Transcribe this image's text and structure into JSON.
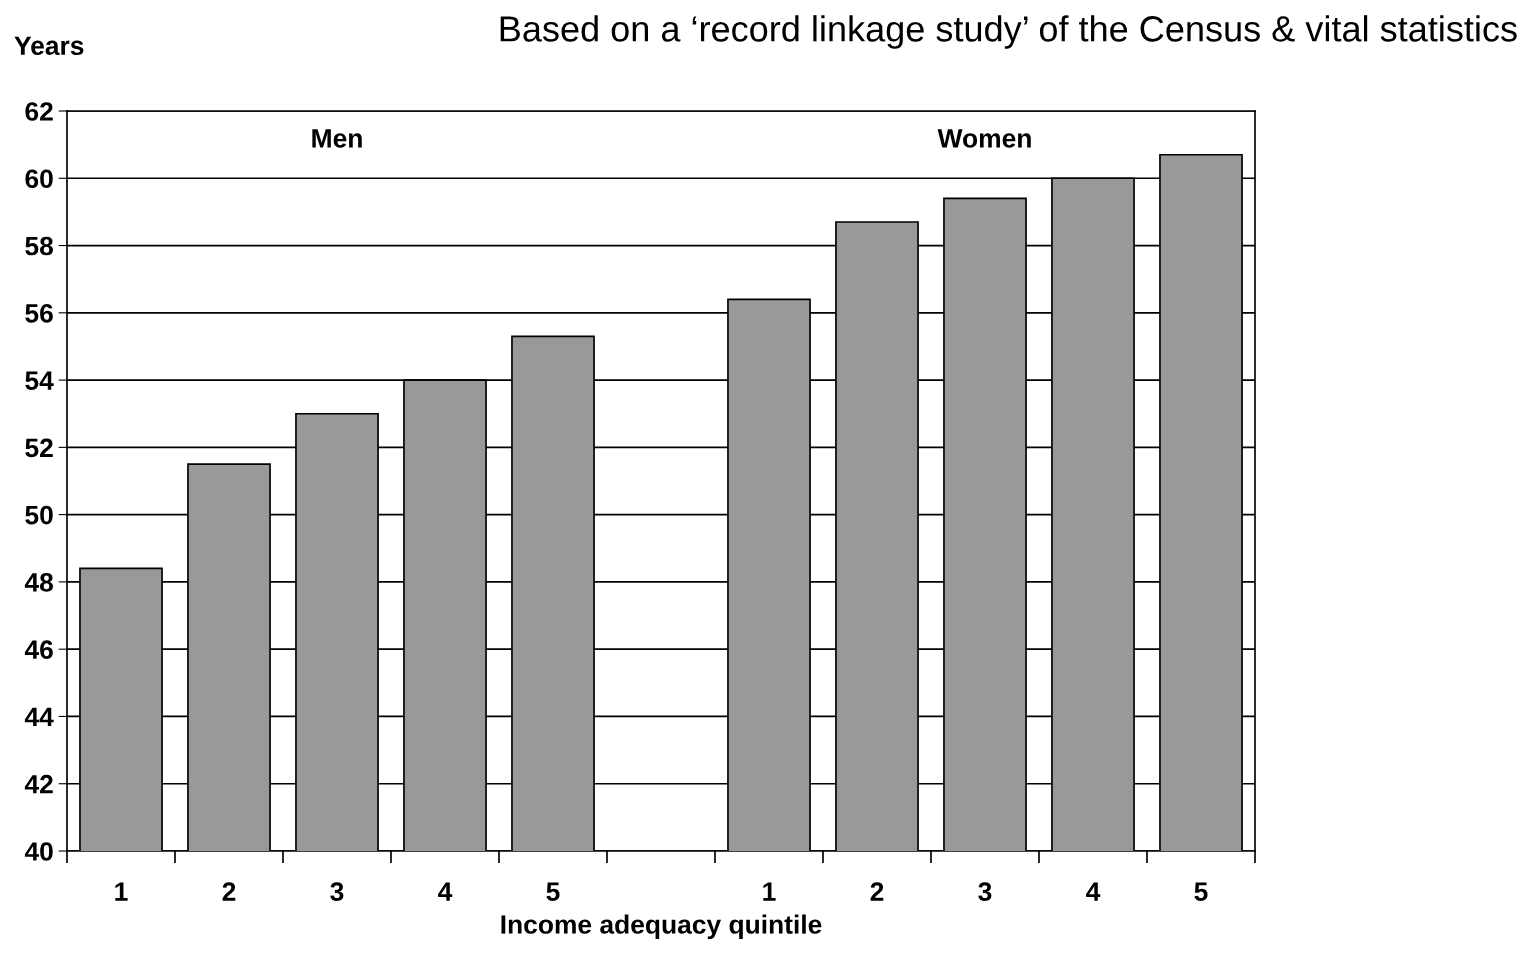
{
  "chart_data": {
    "type": "bar",
    "title": "Based on a ‘record linkage study’ of the Census & vital statistics",
    "ylabel": "Years",
    "xlabel": "Income adequacy quintile",
    "categories": [
      "1",
      "2",
      "3",
      "4",
      "5",
      null,
      "1",
      "2",
      "3",
      "4",
      "5"
    ],
    "values": [
      48.4,
      51.5,
      53.0,
      54.0,
      55.3,
      null,
      56.4,
      58.7,
      59.4,
      60.0,
      60.7
    ],
    "color": "#999999",
    "annotations": [
      "Men",
      "Women"
    ],
    "ylim": [
      40,
      62
    ],
    "yticks": [
      40,
      42,
      44,
      46,
      48,
      50,
      52,
      54,
      56,
      58,
      60,
      62
    ],
    "grid": "y"
  }
}
